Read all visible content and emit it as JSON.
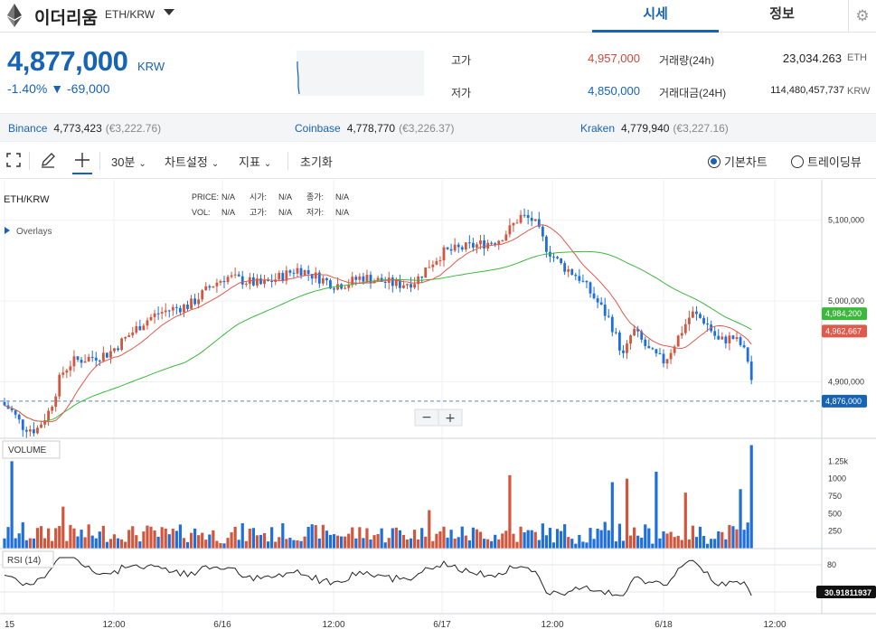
{
  "header": {
    "coin_name": "이더리움",
    "pair": "ETH/KRW",
    "tabs": [
      "시세",
      "정보"
    ]
  },
  "quote": {
    "price": "4,877,000",
    "unit": "KRW",
    "change": "-1.40% ▼ -69,000",
    "high_label": "고가",
    "high": "4,957,000",
    "low_label": "저가",
    "low": "4,850,000",
    "volume_label": "거래량(24h)",
    "volume": "23,034.263",
    "volume_unit": "ETH",
    "value_label": "거래대금(24H)",
    "value": "114,480,457,737",
    "value_unit": "KRW"
  },
  "exchanges": [
    {
      "name": "Binance",
      "krw": "4,773,423",
      "eur": "(€3,222.76)"
    },
    {
      "name": "Coinbase",
      "krw": "4,778,770",
      "eur": "(€3,226.37)"
    },
    {
      "name": "Kraken",
      "krw": "4,779,940",
      "eur": "(€3,227.16)"
    }
  ],
  "toolbar": {
    "interval": "30분",
    "chart_settings": "차트설정",
    "indicators": "지표",
    "reset": "초기화",
    "basic_chart": "기본차트",
    "tradingview": "트레이딩뷰"
  },
  "chart_data": {
    "type": "candlestick",
    "symbol": "ETH/KRW",
    "legend": {
      "price_label": "PRICE:",
      "price": "N/A",
      "open_label": "시가:",
      "open": "N/A",
      "close_label": "종가:",
      "close": "N/A",
      "vol_label": "VOL:",
      "vol": "N/A",
      "high_label": "고가:",
      "high": "N/A",
      "low_label": "저가:",
      "low": "N/A"
    },
    "overlays_label": "Overlays",
    "price_ticks": [
      "5,100,000",
      "5,000,000",
      "4,900,000"
    ],
    "price_tick_values": [
      5100000,
      5000000,
      4900000
    ],
    "ylim": [
      4830000,
      5150000
    ],
    "ma_long_value": "4,984,200",
    "ma_short_value": "4,962,667",
    "last_price": "4,876,000",
    "colors": {
      "up": "#d0573e",
      "down": "#1e6fd9",
      "ma_long": "#3cb83c",
      "ma_short": "#e05a4c",
      "accent": "#1763b6"
    },
    "x_labels": [
      "15",
      "12:00",
      "6/16",
      "12:00",
      "6/17",
      "12:00",
      "6/18",
      "12:00"
    ],
    "zoom_minus": "−",
    "zoom_plus": "+",
    "volume_label": "VOLUME",
    "volume_ticks": [
      "1.25k",
      "1000",
      "750",
      "500",
      "250"
    ],
    "volume_tick_values": [
      1250,
      1000,
      750,
      500,
      250
    ],
    "volume_max": 1500,
    "rsi_label": "RSI (14)",
    "rsi_ticks": [
      "80"
    ],
    "rsi_value": "30.91811937",
    "candles": []
  }
}
